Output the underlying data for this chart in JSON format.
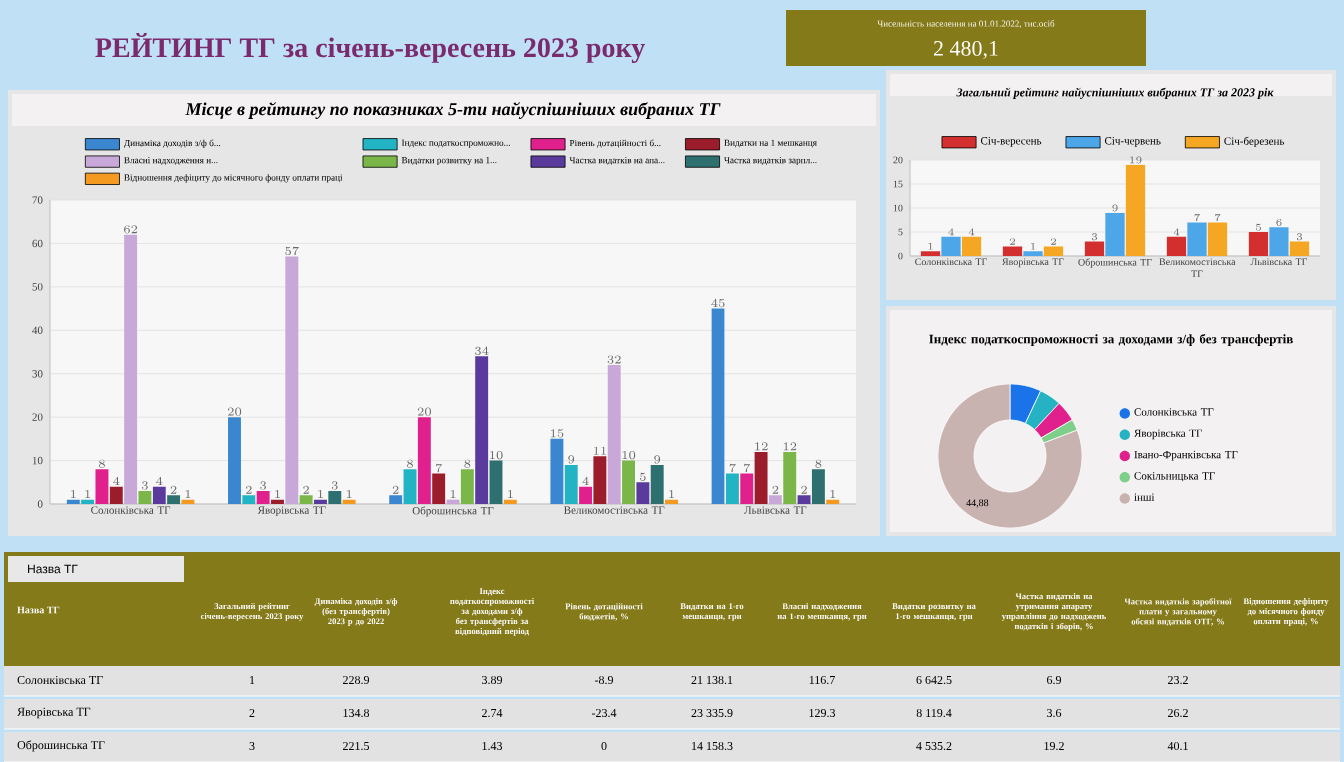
{
  "chart_data": [
    {
      "type": "other",
      "title": "РЕЙТИНГ ТГ за січень-вересень 2023 року",
      "annotations": [
        "Чисельність населення на 01.01.2022, тис.осіб",
        "2 480,1"
      ]
    },
    {
      "type": "bar",
      "title": "Місце в рейтингу по показниках 5-ти найуспішніших вибраних ТГ",
      "categories": [
        "Солонківська ТГ",
        "Яворівська ТГ",
        "Оброшинська ТГ",
        "Великомостівська ТГ",
        "Львівська ТГ"
      ],
      "series": [
        {
          "name": "Динаміка доходів з/ф б...",
          "color": "#3a87d0",
          "values": [
            1,
            20,
            2,
            15,
            45
          ]
        },
        {
          "name": "Індекс податкоспроможно...",
          "color": "#22b3c4",
          "values": [
            1,
            2,
            8,
            9,
            7
          ]
        },
        {
          "name": "Рівень дотаційності б...",
          "color": "#e0208c",
          "values": [
            8,
            3,
            20,
            4,
            7
          ]
        },
        {
          "name": "Видатки на 1 мешканця",
          "color": "#9b1c2b",
          "values": [
            4,
            1,
            7,
            11,
            12
          ]
        },
        {
          "name": "Власні надходження н...",
          "color": "#c8a8d8",
          "values": [
            62,
            57,
            1,
            32,
            2
          ]
        },
        {
          "name": "Видатки розвитку на 1...",
          "color": "#7ab648",
          "values": [
            3,
            2,
            8,
            10,
            12
          ]
        },
        {
          "name": "Частка видатків на апа...",
          "color": "#5b3a9e",
          "values": [
            4,
            1,
            34,
            5,
            2
          ]
        },
        {
          "name": "Частка видатків зарпл...",
          "color": "#2e7070",
          "values": [
            2,
            3,
            10,
            9,
            8
          ]
        },
        {
          "name": "Відношення дефіциту до місячного фонду оплати праці",
          "color": "#f59a20",
          "values": [
            1,
            1,
            1,
            1,
            1
          ]
        }
      ],
      "ylim": [
        0,
        70
      ],
      "yticks": [
        0,
        10,
        20,
        30,
        40,
        50,
        60,
        70
      ],
      "grid": "y",
      "legend": "top",
      "data_labels": true
    },
    {
      "type": "bar",
      "title": "Загальний рейтинг найуспішніших вибраних ТГ за 2023 рік",
      "categories": [
        "Солонківська ТГ",
        "Яворівська ТГ",
        "Оброшинська ТГ",
        "Великомостівська ТГ",
        "Львівська ТГ"
      ],
      "series": [
        {
          "name": "Січ-вересень",
          "color": "#d32f2f",
          "values": [
            1,
            2,
            3,
            4,
            5
          ]
        },
        {
          "name": "Січ-червень",
          "color": "#4da6e8",
          "values": [
            4,
            1,
            9,
            7,
            6
          ]
        },
        {
          "name": "Січ-березень",
          "color": "#f5a623",
          "values": [
            4,
            2,
            19,
            7,
            3
          ]
        }
      ],
      "ylim": [
        0,
        20
      ],
      "yticks": [
        0,
        5,
        10,
        15,
        20
      ],
      "grid": "y",
      "legend": "top",
      "data_labels": true
    },
    {
      "type": "donut",
      "title": "Індекс податкоспроможності за доходами з/ф без трансфертів",
      "categories": [
        "Солонківська ТГ",
        "Яворівська ТГ",
        "Івано-Франківська ТГ",
        "Сокільницька ТГ",
        "інші"
      ],
      "values": [
        3.89,
        2.74,
        2.6,
        1.4,
        44.88
      ],
      "colors": [
        "#1a73e8",
        "#25b3c4",
        "#e0208c",
        "#7dcf8a",
        "#c9b3b0"
      ],
      "value_labels": [
        null,
        null,
        null,
        null,
        "44,88"
      ],
      "legend": "right"
    },
    {
      "type": "other",
      "annotations": [
        "Назва ТГ"
      ],
      "categories": [
        "Назва ТГ",
        "Загальний рейтинг січень-вересень 2023 року",
        "Динаміка доходів з/ф (без трансфертів) 2023 р до 2022",
        "Індекс податкоспроможності за доходами з/ф без трансфертів за відповідний період",
        "Рівень дотаційності бюджетів, %",
        "Видатки на 1-го мешканця, грн",
        "Власні надходження на 1-го мешканця, грн",
        "Видатки розвитку на 1-го мешканця, грн",
        "Частка видатків на утримання апарату управління до надходжень податків і зборів, %",
        "Частка видатків заробітної плати у загальному обсязі видатків ОТГ, %",
        "Відношення дефіциту до місячного фонду оплати праці, %"
      ],
      "y_categories": [
        "Солонківська ТГ",
        "Яворівська ТГ",
        "Оброшинська ТГ"
      ],
      "cell_labels": [
        [
          "1",
          "228.9",
          "3.89",
          "-8.9",
          "21 138.1",
          "116.7",
          "6 642.5",
          "6.9",
          "23.2",
          null
        ],
        [
          "2",
          "134.8",
          "2.74",
          "-23.4",
          "23 335.9",
          "129.3",
          "8 119.4",
          "3.6",
          "26.2",
          null
        ],
        [
          "3",
          "221.5",
          "1.43",
          "0",
          "14 158.3",
          null,
          "4 535.2",
          "19.2",
          "40.1",
          null
        ]
      ]
    }
  ]
}
